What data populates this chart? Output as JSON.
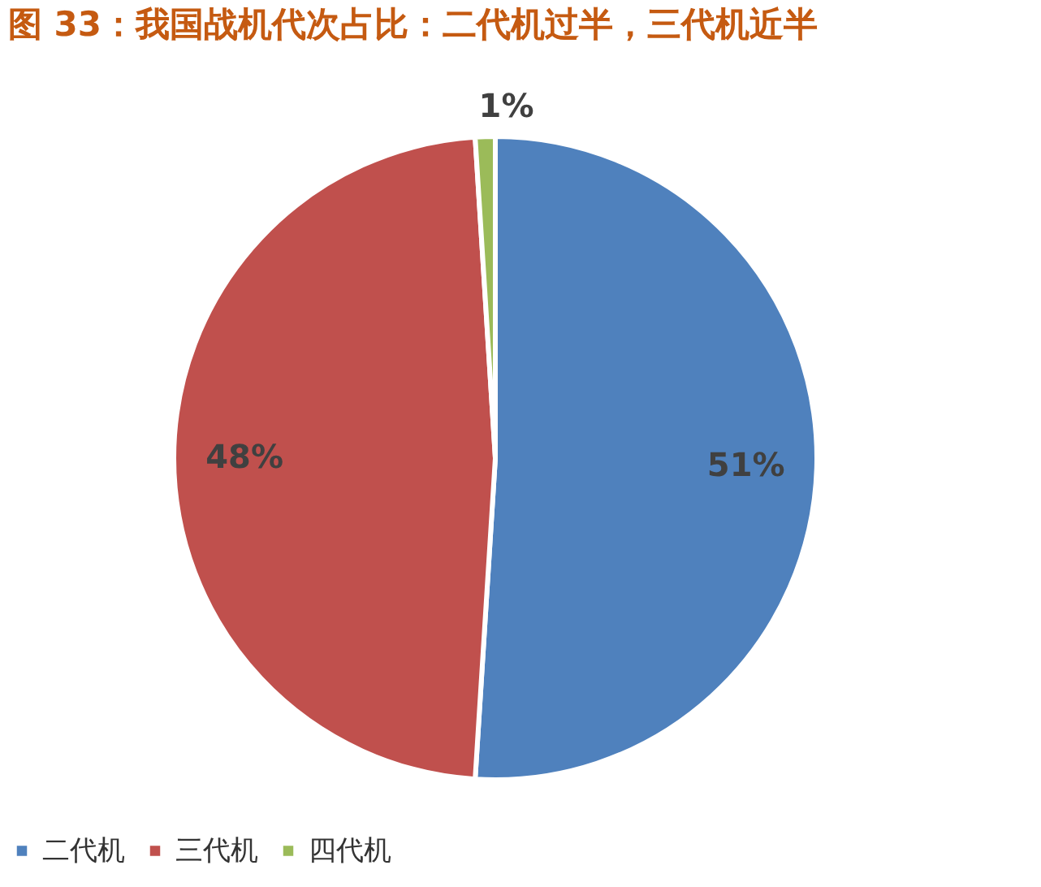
{
  "chart_data": {
    "type": "pie",
    "title": "图 33：我国战机代次占比：二代机过半，三代机近半",
    "categories": [
      "二代机",
      "三代机",
      "四代机"
    ],
    "values": [
      51,
      48,
      1
    ],
    "colors": [
      "#4f81bd",
      "#c0504d",
      "#9bbb59"
    ],
    "value_labels": [
      "51%",
      "48%",
      "1%"
    ],
    "legend": "bottom"
  }
}
